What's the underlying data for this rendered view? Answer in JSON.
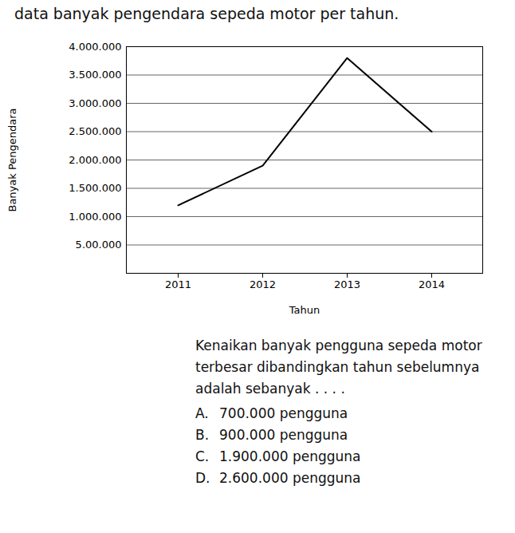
{
  "intro": "data banyak pengendara sepeda motor per tahun.",
  "chart_data": {
    "type": "line",
    "x_label": "Tahun",
    "y_label": "Banyak Pengendara",
    "categories": [
      "2011",
      "2012",
      "2013",
      "2014"
    ],
    "values": [
      1200000,
      1900000,
      3800000,
      2500000
    ],
    "color": "#000000",
    "ylim": [
      0,
      4000000
    ],
    "yticks": [
      {
        "value": 500000,
        "label": "5.00.000"
      },
      {
        "value": 1000000,
        "label": "1.000.000"
      },
      {
        "value": 1500000,
        "label": "1.500.000"
      },
      {
        "value": 2000000,
        "label": "2.000.000"
      },
      {
        "value": 2500000,
        "label": "2.500.000"
      },
      {
        "value": 3000000,
        "label": "3.000.000"
      },
      {
        "value": 3500000,
        "label": "3.500.000"
      },
      {
        "value": 4000000,
        "label": "4.000.000"
      }
    ],
    "grid": true
  },
  "question": "Kenaikan banyak pengguna sepeda motor terbesar dibandingkan tahun sebelumnya adalah sebanyak . . . .",
  "options": [
    {
      "letter": "A.",
      "text": "700.000 pengguna"
    },
    {
      "letter": "B.",
      "text": "900.000 pengguna"
    },
    {
      "letter": "C.",
      "text": "1.900.000 pengguna"
    },
    {
      "letter": "D.",
      "text": "2.600.000 pengguna"
    }
  ]
}
